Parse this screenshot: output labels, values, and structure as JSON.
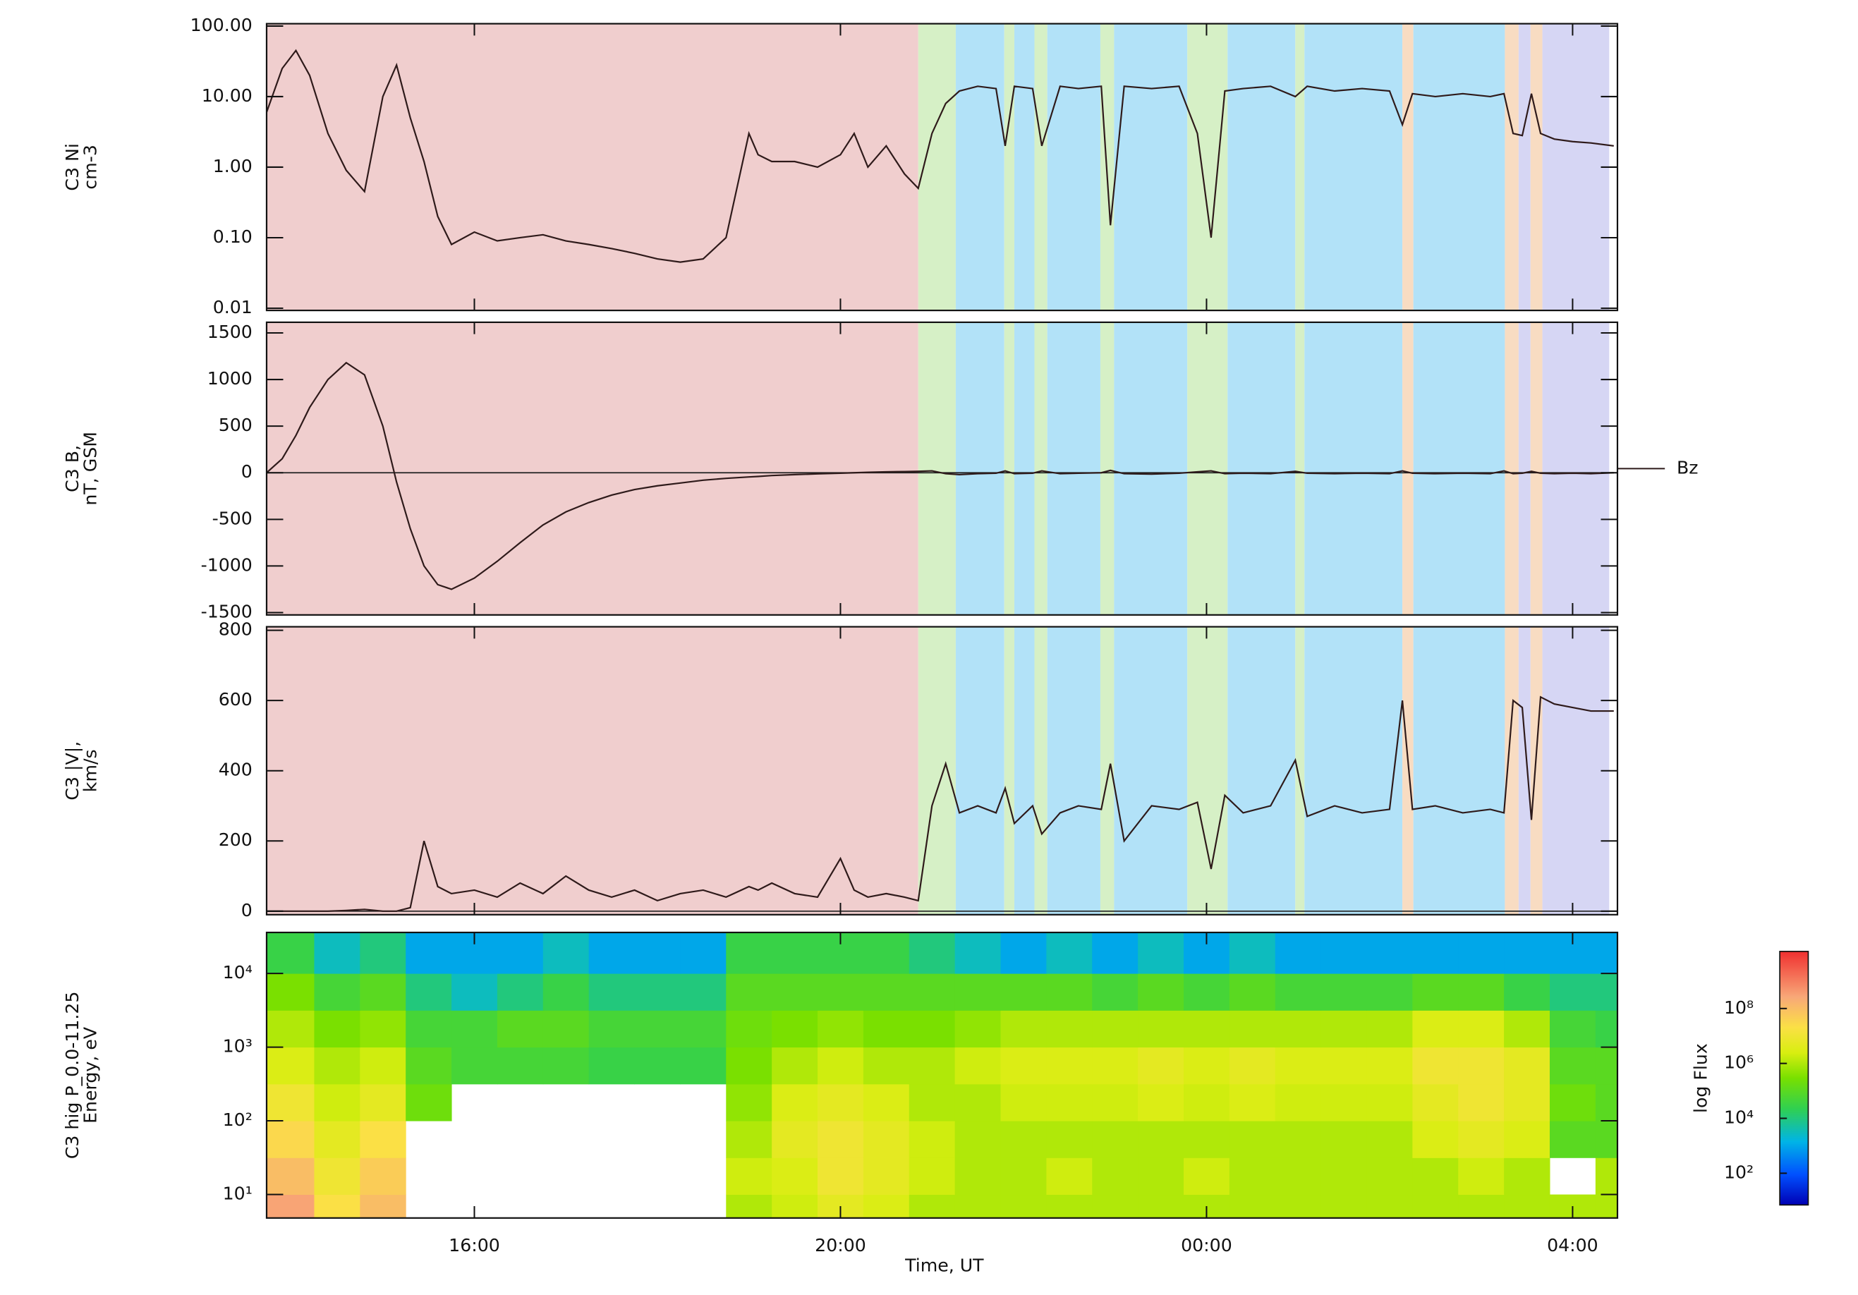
{
  "chart_data": {
    "type": "stacked-panels",
    "xlabel": "Time, UT",
    "xlim": [
      13.73,
      28.49
    ],
    "xticks": [
      {
        "value": 16,
        "label": "16:00"
      },
      {
        "value": 20,
        "label": "20:00"
      },
      {
        "value": 24,
        "label": "00:00"
      },
      {
        "value": 28,
        "label": "04:00"
      }
    ],
    "regions": [
      {
        "start": 13.73,
        "end": 20.85,
        "color": "#f0cece"
      },
      {
        "start": 20.85,
        "end": 21.26,
        "color": "#d6f0c6"
      },
      {
        "start": 21.26,
        "end": 21.79,
        "color": "#b2e2f8"
      },
      {
        "start": 21.79,
        "end": 21.9,
        "color": "#d6f0c6"
      },
      {
        "start": 21.9,
        "end": 22.12,
        "color": "#b2e2f8"
      },
      {
        "start": 22.12,
        "end": 22.26,
        "color": "#d6f0c6"
      },
      {
        "start": 22.26,
        "end": 22.84,
        "color": "#b2e2f8"
      },
      {
        "start": 22.84,
        "end": 22.99,
        "color": "#d6f0c6"
      },
      {
        "start": 22.99,
        "end": 23.79,
        "color": "#b2e2f8"
      },
      {
        "start": 23.79,
        "end": 24.23,
        "color": "#d6f0c6"
      },
      {
        "start": 24.23,
        "end": 24.97,
        "color": "#b2e2f8"
      },
      {
        "start": 24.97,
        "end": 25.07,
        "color": "#d6f0c6"
      },
      {
        "start": 25.07,
        "end": 26.14,
        "color": "#b2e2f8"
      },
      {
        "start": 26.14,
        "end": 26.26,
        "color": "#f8dcc2"
      },
      {
        "start": 26.26,
        "end": 27.26,
        "color": "#b2e2f8"
      },
      {
        "start": 27.26,
        "end": 27.41,
        "color": "#f8dcc2"
      },
      {
        "start": 27.41,
        "end": 27.54,
        "color": "#d6d6f4"
      },
      {
        "start": 27.54,
        "end": 27.67,
        "color": "#f8dcc2"
      },
      {
        "start": 27.67,
        "end": 28.4,
        "color": "#d6d6f4"
      }
    ],
    "x": [
      13.73,
      13.9,
      14.05,
      14.2,
      14.4,
      14.6,
      14.8,
      15.0,
      15.15,
      15.3,
      15.45,
      15.6,
      15.75,
      16.0,
      16.25,
      16.5,
      16.75,
      17.0,
      17.25,
      17.5,
      17.75,
      18.0,
      18.25,
      18.5,
      18.75,
      19.0,
      19.1,
      19.25,
      19.5,
      19.75,
      20.0,
      20.15,
      20.3,
      20.5,
      20.7,
      20.85,
      21.0,
      21.15,
      21.3,
      21.5,
      21.7,
      21.8,
      21.9,
      22.1,
      22.2,
      22.4,
      22.6,
      22.85,
      22.95,
      23.1,
      23.4,
      23.7,
      23.9,
      24.05,
      24.2,
      24.4,
      24.7,
      24.97,
      25.1,
      25.4,
      25.7,
      26.0,
      26.14,
      26.25,
      26.5,
      26.8,
      27.1,
      27.25,
      27.35,
      27.45,
      27.55,
      27.65,
      27.8,
      28.0,
      28.2,
      28.45
    ],
    "panels": [
      {
        "type": "line",
        "ylabel": [
          "C3 Ni",
          "cm-3"
        ],
        "log": true,
        "ylim": [
          0.0093,
          108
        ],
        "yticks": [
          0.01,
          {
            "value": 0.1,
            "label": "0.10"
          },
          {
            "value": 1,
            "label": "1.00"
          },
          {
            "value": 10,
            "label": "10.00"
          },
          {
            "value": 100,
            "label": "100.00"
          }
        ],
        "series": [
          {
            "color": "#2e1a1a",
            "values": [
              6,
              25,
              45,
              20,
              3,
              0.9,
              0.45,
              10,
              28,
              5,
              1.2,
              0.2,
              0.08,
              0.12,
              0.09,
              0.1,
              0.11,
              0.09,
              0.08,
              0.07,
              0.06,
              0.05,
              0.045,
              0.05,
              0.1,
              3,
              1.5,
              1.2,
              1.2,
              1.0,
              1.5,
              3,
              1.0,
              2.0,
              0.8,
              0.5,
              3,
              8,
              12,
              14,
              13,
              2,
              14,
              13,
              2,
              14,
              13,
              14,
              0.15,
              14,
              13,
              14,
              3,
              0.1,
              12,
              13,
              14,
              10,
              14,
              12,
              13,
              12,
              4,
              11,
              10,
              11,
              10,
              11,
              3,
              2.8,
              11,
              3,
              2.5,
              2.3,
              2.2,
              2
            ]
          }
        ]
      },
      {
        "type": "line",
        "ylabel": [
          "C3 B,",
          "nT, GSM"
        ],
        "ylim": [
          -1525,
          1614
        ],
        "yticks": [
          -1500,
          -1000,
          -500,
          0,
          500,
          1000,
          1500
        ],
        "series": [
          {
            "name": "Bz",
            "color": "#2e1a1a",
            "values": [
              0,
              150,
              400,
              700,
              1000,
              1180,
              1050,
              500,
              -100,
              -600,
              -1000,
              -1200,
              -1250,
              -1130,
              -950,
              -750,
              -560,
              -420,
              -320,
              -240,
              -180,
              -140,
              -110,
              -80,
              -60,
              -45,
              -40,
              -30,
              -20,
              -12,
              -5,
              0,
              5,
              10,
              12,
              15,
              20,
              -10,
              -20,
              -10,
              -5,
              20,
              -10,
              -5,
              20,
              -10,
              -5,
              0,
              25,
              -10,
              -15,
              -5,
              10,
              20,
              -10,
              -5,
              -10,
              15,
              -5,
              -10,
              -5,
              -10,
              20,
              -5,
              -10,
              -5,
              -10,
              20,
              -10,
              -5,
              15,
              -5,
              -10,
              -5,
              -10,
              0
            ]
          }
        ]
      },
      {
        "type": "line",
        "ylabel": [
          "C3 |V|,",
          "km/s"
        ],
        "ylim": [
          -10,
          810
        ],
        "yticks": [
          0,
          200,
          400,
          600,
          800
        ],
        "series": [
          {
            "color": "#2e1a1a",
            "values": [
              0,
              0,
              0,
              0,
              0,
              2,
              5,
              0,
              0,
              10,
              200,
              70,
              50,
              60,
              40,
              80,
              50,
              100,
              60,
              40,
              60,
              30,
              50,
              60,
              40,
              70,
              60,
              80,
              50,
              40,
              150,
              60,
              40,
              50,
              40,
              30,
              300,
              420,
              280,
              300,
              280,
              350,
              250,
              300,
              220,
              280,
              300,
              290,
              420,
              200,
              300,
              290,
              310,
              120,
              330,
              280,
              300,
              430,
              270,
              300,
              280,
              290,
              600,
              290,
              300,
              280,
              290,
              280,
              600,
              580,
              260,
              610,
              590,
              580,
              570,
              570
            ]
          }
        ]
      },
      {
        "type": "heatmap",
        "ylabel": [
          "C3 hig P_0.0-11.25",
          "Energy, eV"
        ],
        "log": true,
        "ylim": [
          4.8,
          36000
        ],
        "yticks": [
          {
            "value": 10,
            "label": "10¹"
          },
          {
            "value": 100,
            "label": "10²"
          },
          {
            "value": 1000,
            "label": "10³"
          },
          {
            "value": 10000,
            "label": "10⁴"
          }
        ],
        "x_bins": [
          13.73,
          14.25,
          14.75,
          15.25,
          15.75,
          16.25,
          16.75,
          17.25,
          17.75,
          18.25,
          18.75,
          19.25,
          19.75,
          20.25,
          20.75,
          21.25,
          21.75,
          22.25,
          22.75,
          23.25,
          23.75,
          24.25,
          24.75,
          25.25,
          25.75,
          26.25,
          26.75,
          27.25,
          27.75,
          28.25,
          28.49
        ],
        "y_bins": [
          4.8,
          10,
          31.6,
          100,
          316,
          1000,
          3162,
          10000,
          36000
        ],
        "z": [
          [
            300000000.0,
            20000000.0,
            100000000.0,
            null,
            null,
            null,
            null,
            null,
            null,
            null,
            1000000.0,
            2000000.0,
            5000000.0,
            3000000.0,
            1000000.0,
            1000000.0,
            1000000.0,
            1000000.0,
            1000000.0,
            1000000.0,
            1000000.0,
            1000000.0,
            1000000.0,
            1000000.0,
            1000000.0,
            1000000.0,
            1000000.0,
            1000000.0,
            1000000.0,
            1000000.0
          ],
          [
            100000000.0,
            10000000.0,
            50000000.0,
            null,
            null,
            null,
            null,
            null,
            null,
            null,
            2000000.0,
            3000000.0,
            10000000.0,
            5000000.0,
            2000000.0,
            1000000.0,
            1000000.0,
            2000000.0,
            1000000.0,
            1000000.0,
            2000000.0,
            1000000.0,
            1000000.0,
            1000000.0,
            1000000.0,
            1000000.0,
            2000000.0,
            1000000.0,
            null,
            1000000.0
          ],
          [
            30000000.0,
            5000000.0,
            20000000.0,
            null,
            null,
            null,
            null,
            null,
            null,
            null,
            1000000.0,
            5000000.0,
            10000000.0,
            5000000.0,
            2000000.0,
            1000000.0,
            1000000.0,
            1000000.0,
            1000000.0,
            1000000.0,
            1000000.0,
            1000000.0,
            1000000.0,
            1000000.0,
            1000000.0,
            3000000.0,
            5000000.0,
            3000000.0,
            100000.0,
            100000.0
          ],
          [
            10000000.0,
            2000000.0,
            5000000.0,
            200000.0,
            null,
            null,
            null,
            null,
            null,
            null,
            500000.0,
            3000000.0,
            5000000.0,
            3000000.0,
            1000000.0,
            1000000.0,
            2000000.0,
            2000000.0,
            2000000.0,
            3000000.0,
            2000000.0,
            3000000.0,
            2000000.0,
            2000000.0,
            2000000.0,
            5000000.0,
            10000000.0,
            5000000.0,
            200000.0,
            100000.0
          ],
          [
            3000000.0,
            1000000.0,
            2000000.0,
            100000.0,
            50000.0,
            50000.0,
            50000.0,
            30000.0,
            30000.0,
            30000.0,
            300000.0,
            1000000.0,
            2000000.0,
            1000000.0,
            1000000.0,
            2000000.0,
            3000000.0,
            3000000.0,
            3000000.0,
            5000000.0,
            3000000.0,
            5000000.0,
            3000000.0,
            3000000.0,
            3000000.0,
            10000000.0,
            10000000.0,
            5000000.0,
            100000.0,
            100000.0
          ],
          [
            1000000.0,
            300000.0,
            500000.0,
            50000.0,
            50000.0,
            100000.0,
            100000.0,
            50000.0,
            50000.0,
            50000.0,
            200000.0,
            300000.0,
            500000.0,
            300000.0,
            300000.0,
            500000.0,
            1000000.0,
            1000000.0,
            1000000.0,
            1000000.0,
            1000000.0,
            1000000.0,
            1000000.0,
            1000000.0,
            1000000.0,
            3000000.0,
            3000000.0,
            1000000.0,
            50000.0,
            30000.0
          ],
          [
            300000.0,
            50000.0,
            100000.0,
            10000.0,
            3000.0,
            10000.0,
            30000.0,
            10000.0,
            10000.0,
            10000.0,
            100000.0,
            100000.0,
            100000.0,
            100000.0,
            100000.0,
            100000.0,
            100000.0,
            100000.0,
            50000.0,
            100000.0,
            50000.0,
            100000.0,
            50000.0,
            50000.0,
            50000.0,
            100000.0,
            100000.0,
            30000.0,
            10000.0,
            10000.0
          ],
          [
            30000.0,
            3000.0,
            10000.0,
            1000.0,
            1000.0,
            1000.0,
            3000.0,
            1000.0,
            1000.0,
            1000.0,
            30000.0,
            30000.0,
            30000.0,
            30000.0,
            10000.0,
            3000.0,
            1000.0,
            3000.0,
            1000.0,
            3000.0,
            1000.0,
            3000.0,
            1000.0,
            1000.0,
            1000.0,
            1000.0,
            1000.0,
            1000.0,
            1000.0,
            1000.0
          ]
        ],
        "zlabel": "log Flux",
        "zlim": [
          7,
          12000000000.0
        ],
        "zticks": [
          {
            "value": 100,
            "label": "10²"
          },
          {
            "value": 10000,
            "label": "10⁴"
          },
          {
            "value": 1000000,
            "label": "10⁶"
          },
          {
            "value": 100000000,
            "label": "10⁸"
          }
        ]
      }
    ]
  }
}
